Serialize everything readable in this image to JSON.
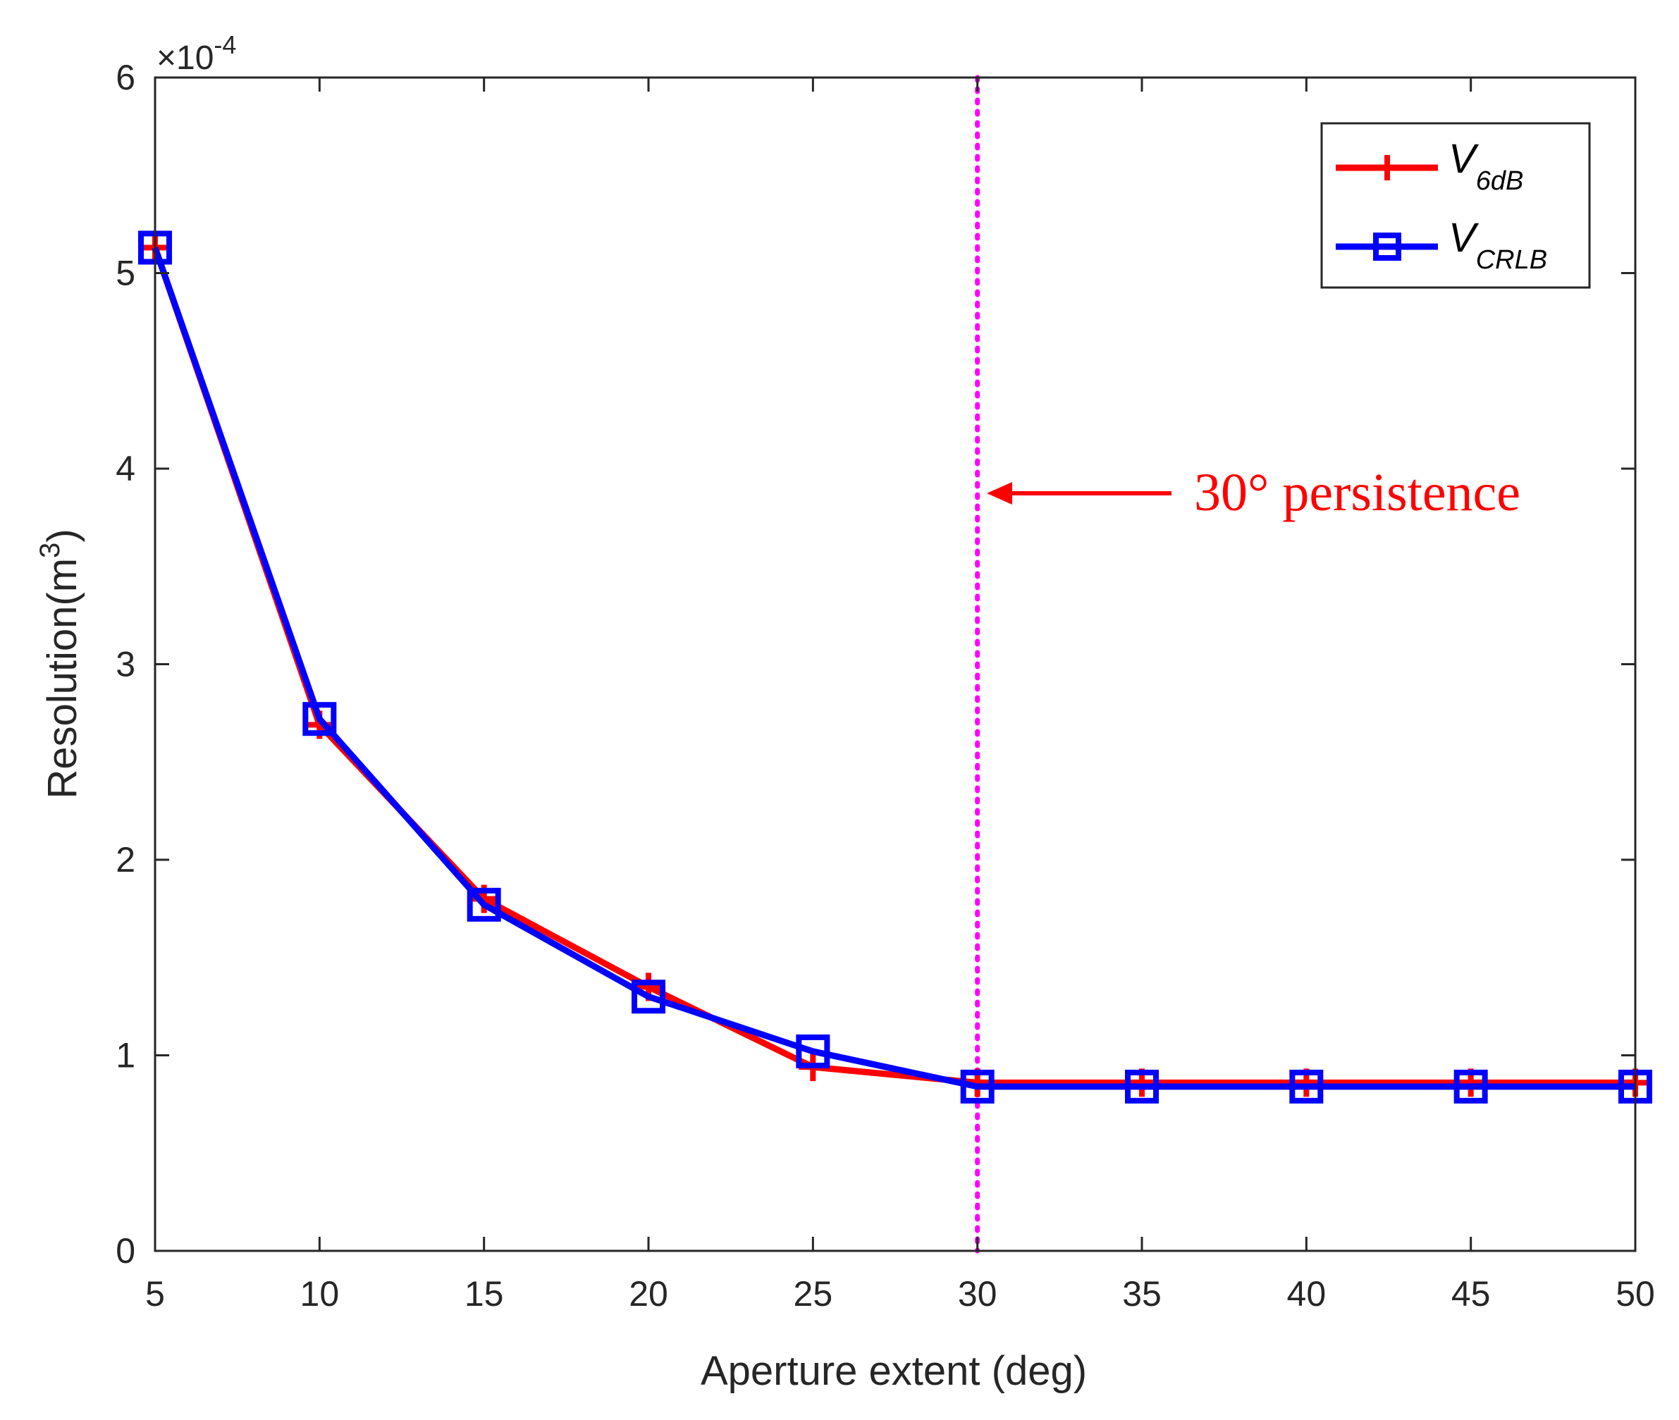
{
  "chart_data": {
    "type": "line",
    "title": "",
    "xlabel": "Aperture extent (deg)",
    "ylabel": "Resolution(m",
    "ylabel_superscript": "3",
    "ylabel_suffix": ")",
    "y_exponent_prefix": "×10",
    "y_exponent_power": "-4",
    "x": [
      5,
      10,
      15,
      20,
      25,
      30,
      35,
      40,
      45,
      50
    ],
    "xlim": [
      5,
      50
    ],
    "ylim": [
      0,
      6
    ],
    "xticks": [
      "5",
      "10",
      "15",
      "20",
      "25",
      "30",
      "35",
      "40",
      "45",
      "50"
    ],
    "yticks": [
      "0",
      "1",
      "2",
      "3",
      "4",
      "5",
      "6"
    ],
    "series": [
      {
        "name": "V",
        "subscript": "6dB",
        "color": "#ff0000",
        "marker": "plus",
        "values": [
          5.13,
          2.69,
          1.8,
          1.35,
          0.94,
          0.86,
          0.86,
          0.86,
          0.86,
          0.86
        ]
      },
      {
        "name": "V",
        "subscript": "CRLB",
        "color": "#0000ff",
        "marker": "square",
        "values": [
          5.13,
          2.72,
          1.77,
          1.3,
          1.02,
          0.84,
          0.84,
          0.84,
          0.84,
          0.84
        ]
      }
    ],
    "reference_line": {
      "x": 30,
      "color": "#ff00ff",
      "style": "dotted"
    },
    "annotation": {
      "text": "30°  persistence",
      "color": "#ff0000",
      "points_to_x": 30,
      "points_to_y": 3.9
    },
    "legend_position": "top-right",
    "grid": false
  }
}
